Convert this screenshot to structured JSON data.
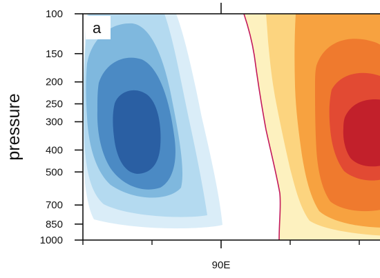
{
  "chart_data": {
    "type": "contour",
    "panel_label": "a",
    "xlabel": "",
    "ylabel": "pressure",
    "x_tick_labels": [
      {
        "label": "90E",
        "position": "center"
      }
    ],
    "y_scale": "log",
    "y_reversed": true,
    "ylim": [
      1000,
      100
    ],
    "y_ticks": [
      100,
      150,
      200,
      250,
      300,
      400,
      500,
      700,
      850,
      1000
    ],
    "y_tick_labels": [
      "100",
      "150",
      "200",
      "250",
      "300",
      "400",
      "500",
      "700",
      "850",
      "1000"
    ],
    "grid": false,
    "legend": "none",
    "zero_contour_color": "#c2185b",
    "negative_fill_levels": [
      "#daedf8",
      "#b4daf0",
      "#7fb8de",
      "#4b8ac4",
      "#2a5fa3"
    ],
    "positive_fill_levels": [
      "#fdf1bf",
      "#fcd47f",
      "#f7a240",
      "#ef7a2e",
      "#e24a33",
      "#c2202b"
    ]
  }
}
